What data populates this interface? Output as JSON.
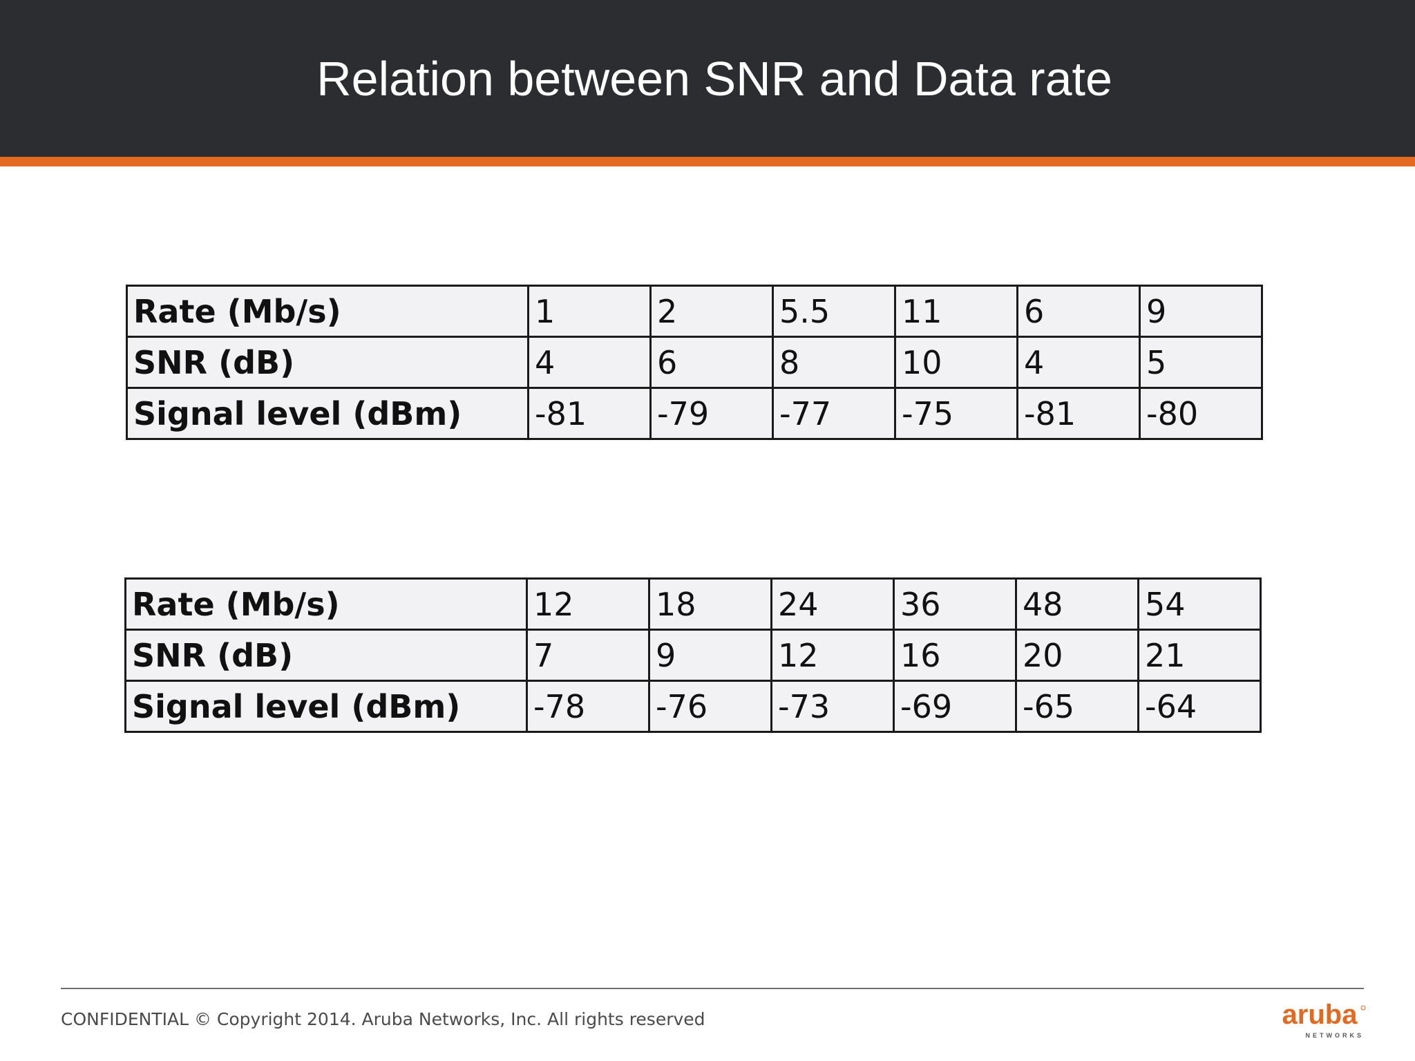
{
  "slide": {
    "title": "Relation between SNR and Data rate"
  },
  "tables": [
    {
      "rows": [
        {
          "label": "Rate (Mb/s)",
          "values": [
            "1",
            "2",
            "5.5",
            "11",
            "6",
            "9"
          ]
        },
        {
          "label": "SNR (dB)",
          "values": [
            "4",
            "6",
            "8",
            "10",
            "4",
            "5"
          ]
        },
        {
          "label": "Signal level (dBm)",
          "values": [
            "-81",
            "-79",
            "-77",
            "-75",
            "-81",
            "-80"
          ]
        }
      ]
    },
    {
      "rows": [
        {
          "label": "Rate (Mb/s)",
          "values": [
            "12",
            "18",
            "24",
            "36",
            "48",
            "54"
          ]
        },
        {
          "label": "SNR (dB)",
          "values": [
            "7",
            "9",
            "12",
            "16",
            "20",
            "21"
          ]
        },
        {
          "label": "Signal level (dBm)",
          "values": [
            "-78",
            "-76",
            "-73",
            "-69",
            "-65",
            "-64"
          ]
        }
      ]
    }
  ],
  "footer": {
    "copyright": "CONFIDENTIAL © Copyright 2014. Aruba Networks, Inc. All rights reserved",
    "logo_word": "aruba",
    "logo_sub": "NETWORKS"
  },
  "colors": {
    "title_bar": "#2c2d31",
    "accent": "#e2691f",
    "table_fill": "#f2f1f4",
    "logo": "#e2691f"
  }
}
